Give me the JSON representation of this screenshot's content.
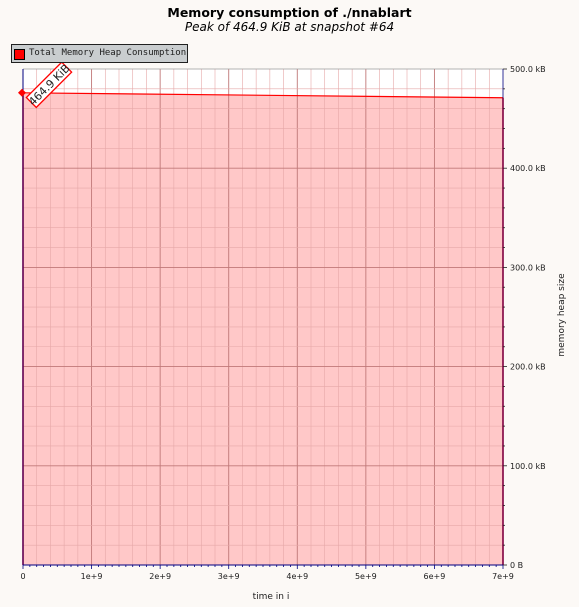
{
  "chart_data": {
    "type": "area",
    "title": "Memory consumption of ./nnablart",
    "subtitle": "Peak of 464.9 KiB at snapshot #64",
    "xlabel": "time in i",
    "ylabel": "memory heap size",
    "legend": {
      "position": "top-left",
      "entries": [
        "Total Memory Heap Consumption"
      ]
    },
    "series": [
      {
        "name": "Total Memory Heap Consumption",
        "x": [
          0,
          7000000000
        ],
        "values": [
          476,
          471
        ]
      }
    ],
    "peak": {
      "label": "464.9 KiB",
      "x": 0,
      "value": 476
    },
    "xlim": [
      0,
      7000000000
    ],
    "ylim": [
      0,
      500
    ],
    "x_ticks": [
      {
        "value": 0,
        "label": "0"
      },
      {
        "value": 1000000000,
        "label": "1e+9"
      },
      {
        "value": 2000000000,
        "label": "2e+9"
      },
      {
        "value": 3000000000,
        "label": "3e+9"
      },
      {
        "value": 4000000000,
        "label": "4e+9"
      },
      {
        "value": 5000000000,
        "label": "5e+9"
      },
      {
        "value": 6000000000,
        "label": "6e+9"
      },
      {
        "value": 7000000000,
        "label": "7e+9"
      }
    ],
    "y_ticks": [
      {
        "value": 0,
        "label": "0 B"
      },
      {
        "value": 100,
        "label": "100.0 kB"
      },
      {
        "value": 200,
        "label": "200.0 kB"
      },
      {
        "value": 300,
        "label": "300.0 kB"
      },
      {
        "value": 400,
        "label": "400.0 kB"
      },
      {
        "value": 500,
        "label": "500.0 kB"
      }
    ],
    "grid": true,
    "colors": {
      "line": "#ff0000",
      "fill": "#ffc8c8",
      "grid_major": "#c07878",
      "grid_minor": "#e6a8a8",
      "axis": "#000080",
      "legend_bg": "#c9cdcf"
    }
  }
}
